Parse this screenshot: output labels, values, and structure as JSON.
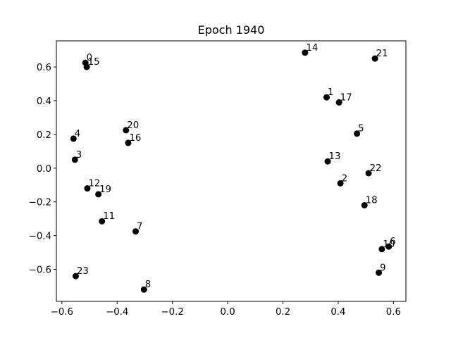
{
  "chart_data": {
    "type": "scatter",
    "title": "Epoch 1940",
    "xlabel": "",
    "ylabel": "",
    "xlim": [
      -0.62,
      0.645
    ],
    "ylim": [
      -0.79,
      0.755
    ],
    "xticks": [
      -0.6,
      -0.4,
      -0.2,
      0.0,
      0.2,
      0.4,
      0.6
    ],
    "xtick_labels": [
      "−0.6",
      "−0.4",
      "−0.2",
      "0.0",
      "0.2",
      "0.4",
      "0.6"
    ],
    "yticks": [
      -0.6,
      -0.4,
      -0.2,
      0.0,
      0.2,
      0.4,
      0.6
    ],
    "ytick_labels": [
      "−0.6",
      "−0.4",
      "−0.2",
      "0.0",
      "0.2",
      "0.4",
      "0.6"
    ],
    "grid": false,
    "marker_color": "#000000",
    "points": [
      {
        "label": "0",
        "x": -0.515,
        "y": 0.625
      },
      {
        "label": "1",
        "x": 0.358,
        "y": 0.42
      },
      {
        "label": "2",
        "x": 0.408,
        "y": -0.09
      },
      {
        "label": "3",
        "x": -0.553,
        "y": 0.05
      },
      {
        "label": "4",
        "x": -0.558,
        "y": 0.175
      },
      {
        "label": "5",
        "x": 0.468,
        "y": 0.205
      },
      {
        "label": "6",
        "x": 0.583,
        "y": -0.465
      },
      {
        "label": "7",
        "x": -0.333,
        "y": -0.375
      },
      {
        "label": "8",
        "x": -0.303,
        "y": -0.72
      },
      {
        "label": "9",
        "x": 0.547,
        "y": -0.62
      },
      {
        "label": "10",
        "x": 0.558,
        "y": -0.48
      },
      {
        "label": "11",
        "x": -0.455,
        "y": -0.315
      },
      {
        "label": "12",
        "x": -0.508,
        "y": -0.12
      },
      {
        "label": "13",
        "x": 0.362,
        "y": 0.04
      },
      {
        "label": "14",
        "x": 0.28,
        "y": 0.685
      },
      {
        "label": "15",
        "x": -0.51,
        "y": 0.6
      },
      {
        "label": "16",
        "x": -0.36,
        "y": 0.15
      },
      {
        "label": "17",
        "x": 0.403,
        "y": 0.39
      },
      {
        "label": "18",
        "x": 0.495,
        "y": -0.22
      },
      {
        "label": "19",
        "x": -0.468,
        "y": -0.155
      },
      {
        "label": "20",
        "x": -0.368,
        "y": 0.225
      },
      {
        "label": "21",
        "x": 0.533,
        "y": 0.65
      },
      {
        "label": "22",
        "x": 0.51,
        "y": -0.03
      },
      {
        "label": "23",
        "x": -0.55,
        "y": -0.64
      }
    ]
  }
}
